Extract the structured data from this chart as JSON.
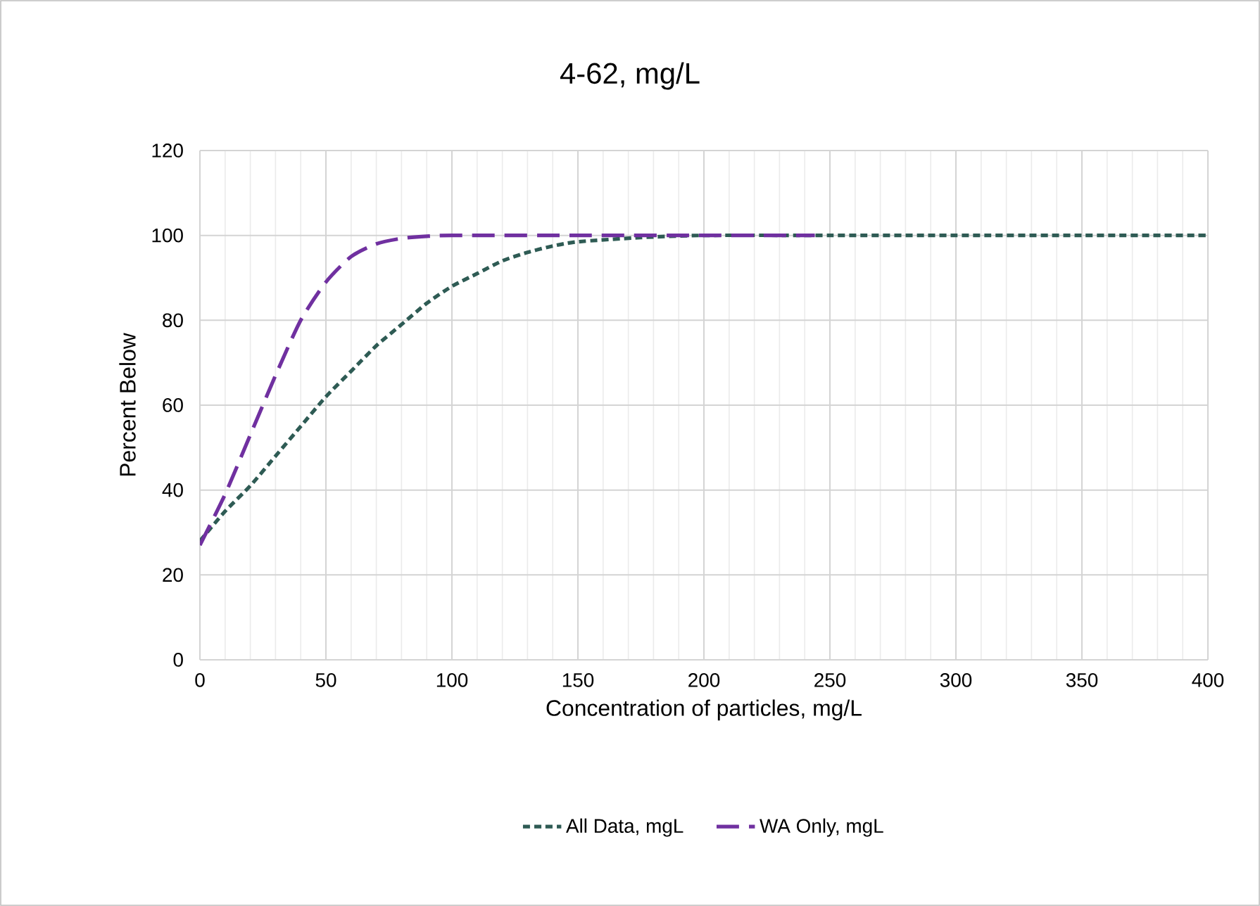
{
  "chart_data": {
    "type": "line",
    "title": "4-62, mg/L",
    "xlabel": "Concentration of particles, mg/L",
    "ylabel": "Percent Below",
    "xlim": [
      0,
      400
    ],
    "xticks": [
      0,
      50,
      100,
      150,
      200,
      250,
      300,
      350,
      400
    ],
    "ylim": [
      0,
      120
    ],
    "yticks": [
      0,
      20,
      40,
      60,
      80,
      100,
      120
    ],
    "grid": true,
    "legend": "bottom",
    "marker": "none",
    "series": [
      {
        "name": "All Data, mgL",
        "color": "#2e5b54",
        "line_style": "dotted",
        "x": [
          0,
          10,
          20,
          30,
          40,
          50,
          60,
          70,
          80,
          90,
          100,
          110,
          120,
          130,
          140,
          150,
          175,
          200,
          250,
          300,
          350,
          400
        ],
        "values": [
          28,
          35,
          41,
          48,
          55,
          62,
          68,
          74,
          79,
          84,
          88,
          91,
          94,
          96,
          97.5,
          98.5,
          99.5,
          100,
          100,
          100,
          100,
          100
        ]
      },
      {
        "name": "WA Only, mgL",
        "color": "#7030a0",
        "line_style": "dashed",
        "x": [
          0,
          10,
          20,
          30,
          40,
          50,
          60,
          70,
          80,
          90,
          100,
          150,
          200,
          244
        ],
        "values": [
          27,
          39,
          53,
          67,
          80,
          89,
          95,
          98,
          99.3,
          99.8,
          100,
          100,
          100,
          100
        ]
      }
    ]
  }
}
